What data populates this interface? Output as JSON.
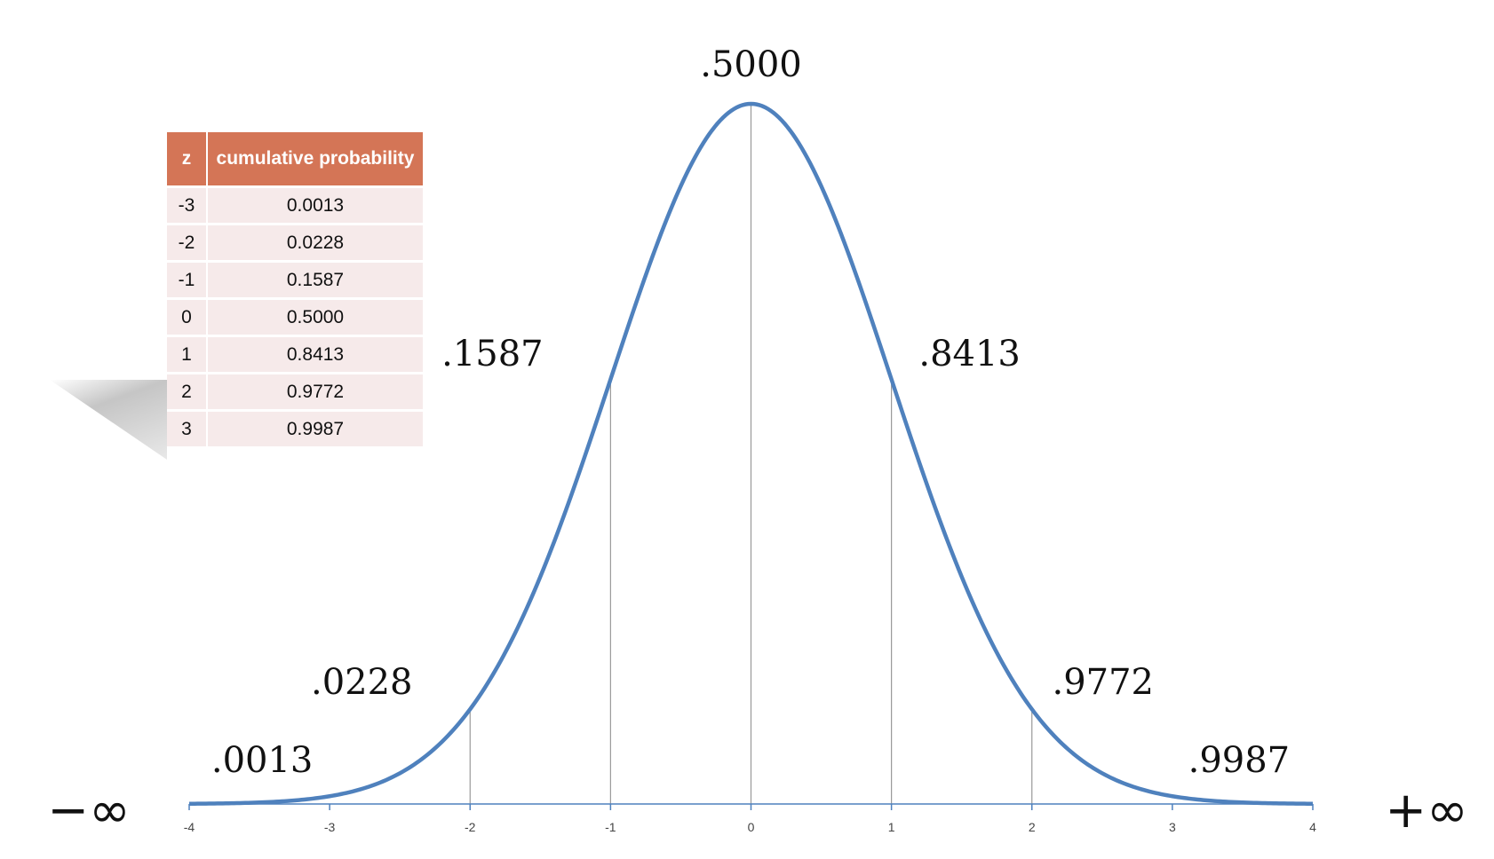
{
  "chart_data": {
    "type": "line",
    "title": "",
    "xlabel": "",
    "ylabel": "",
    "curve": "standard normal density",
    "xlim": [
      -4,
      4
    ],
    "x_ticks": [
      "-4",
      "-3",
      "-2",
      "-1",
      "0",
      "1",
      "2",
      "3",
      "4"
    ],
    "grid": false,
    "line_color": "#4f81bd",
    "annotations": [
      {
        "z": -3,
        "label": ".0013",
        "drop_line": false
      },
      {
        "z": -2,
        "label": ".0228",
        "drop_line": true
      },
      {
        "z": -1,
        "label": ".1587",
        "drop_line": true
      },
      {
        "z": 0,
        "label": ".5000",
        "drop_line": true
      },
      {
        "z": 1,
        "label": ".8413",
        "drop_line": true
      },
      {
        "z": 2,
        "label": ".9772",
        "drop_line": true
      },
      {
        "z": 3,
        "label": ".9987",
        "drop_line": false
      }
    ],
    "left_limit_label": "−∞",
    "right_limit_label": "+∞"
  },
  "table": {
    "headers": [
      "z",
      "cumulative probability"
    ],
    "header_color": "#d47556",
    "rows": [
      [
        "-3",
        "0.0013"
      ],
      [
        "-2",
        "0.0228"
      ],
      [
        "-1",
        "0.1587"
      ],
      [
        "0",
        "0.5000"
      ],
      [
        "1",
        "0.8413"
      ],
      [
        "2",
        "0.9772"
      ],
      [
        "3",
        "0.9987"
      ]
    ]
  }
}
